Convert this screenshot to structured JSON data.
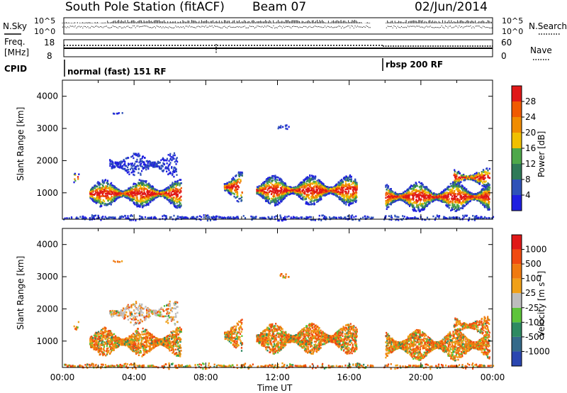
{
  "header": {
    "station": "South Pole Station (fitACF)",
    "beam": "Beam 07",
    "date": "02/Jun/2014"
  },
  "top_panels": {
    "nsky_label": "N.Sky",
    "nsearch_label": "N.Search",
    "nsky_ticks": [
      "10^5",
      "10^0"
    ],
    "nsearch_ticks": [
      "10^5",
      "10^0"
    ],
    "freq_label_1": "Freq.",
    "freq_label_2": "[MHz]",
    "freq_ticks": [
      "18",
      "8"
    ],
    "nave_label": "Nave",
    "nave_ticks": [
      "60",
      "0"
    ],
    "cpid_label": "CPID",
    "cpid_segments": [
      {
        "label": "normal (fast) 151 RF",
        "start_hour": 0
      },
      {
        "label": "rbsp 200 RF",
        "start_hour": 18
      }
    ]
  },
  "chart_data": [
    {
      "type": "heatmap",
      "name": "power",
      "ylabel": "Slant Range [km]",
      "xlabel": "Time UT",
      "ylim": [
        180,
        4500
      ],
      "y_ticks": [
        "1000",
        "2000",
        "3000",
        "4000"
      ],
      "x_ticks": [
        "00:00",
        "04:00",
        "08:00",
        "12:00",
        "16:00",
        "20:00",
        "00:00"
      ],
      "colorbar_label": "Power [dB]",
      "colorbar_ticks": [
        "4",
        "8",
        "12",
        "16",
        "20",
        "24",
        "28"
      ],
      "colors": [
        "#1f1fe0",
        "#2f52b8",
        "#2f7a58",
        "#4ea84a",
        "#f0c000",
        "#f08c00",
        "#f05a00",
        "#e01818"
      ]
    },
    {
      "type": "heatmap",
      "name": "velocity",
      "ylabel": "Slant Range [km]",
      "xlabel": "Time UT",
      "ylim": [
        180,
        4500
      ],
      "y_ticks": [
        "1000",
        "2000",
        "3000",
        "4000"
      ],
      "x_ticks": [
        "00:00",
        "04:00",
        "08:00",
        "12:00",
        "16:00",
        "20:00",
        "00:00"
      ],
      "colorbar_label": "Velocity [m s⁻¹]",
      "colorbar_ticks": [
        "1000",
        "500",
        "100",
        "25",
        "-25",
        "-100",
        "-500",
        "-1000"
      ],
      "colors": [
        "#2a46b0",
        "#356a8a",
        "#2e8a62",
        "#5dc43a",
        "#bdbdbd",
        "#f0a018",
        "#f07a10",
        "#f04a10",
        "#e01818"
      ]
    }
  ],
  "x_axis_title": "Time UT"
}
